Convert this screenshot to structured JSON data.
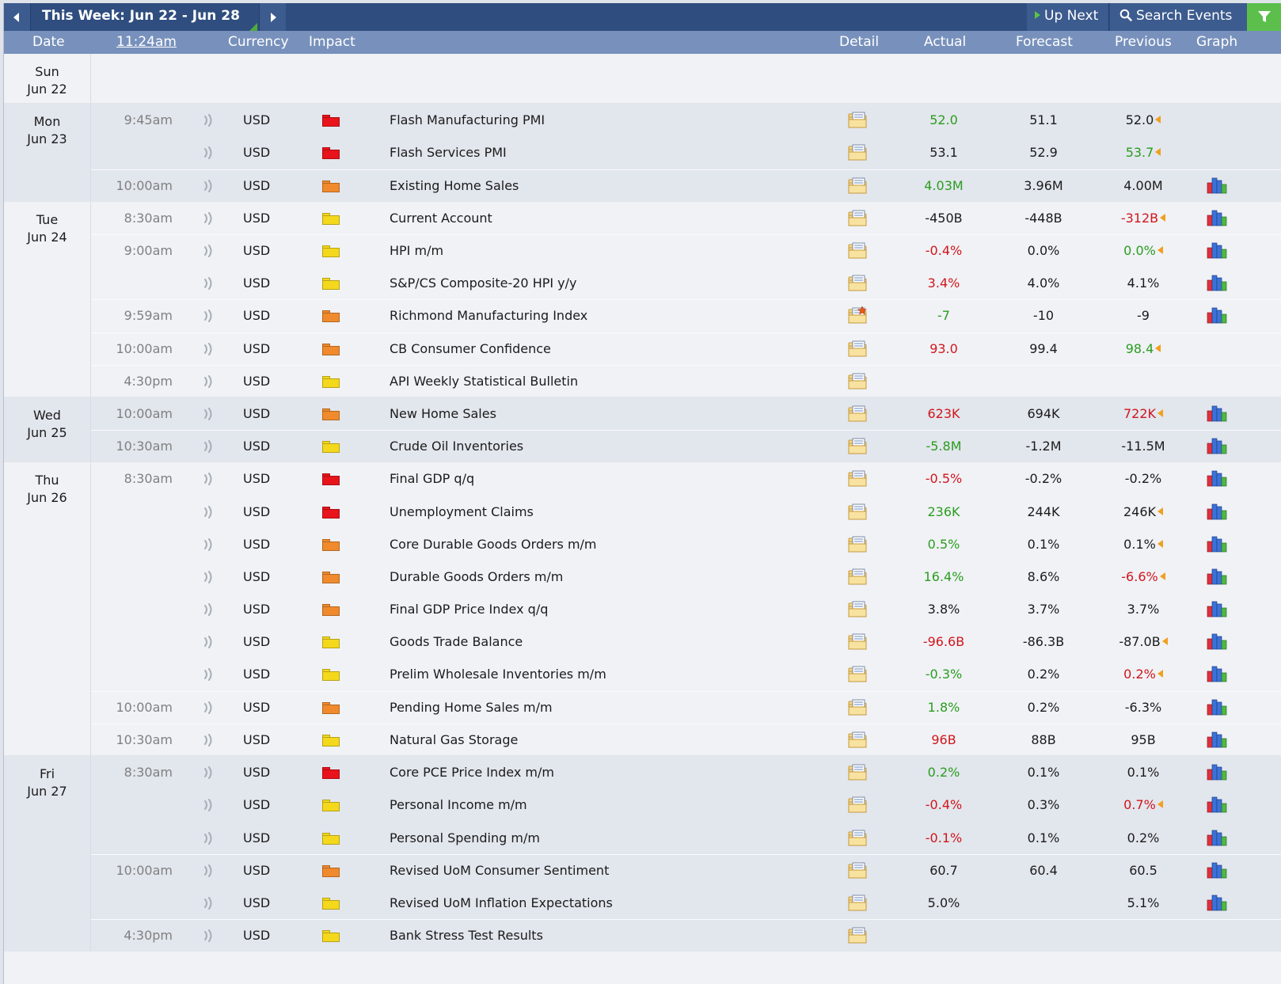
{
  "topbar": {
    "week_title": "This Week: Jun 22 - Jun 28",
    "up_next": "Up Next",
    "search_events": "Search Events",
    "accent_color": "#5cbf4c"
  },
  "columns": {
    "date": "Date",
    "time": "11:24am",
    "currency": "Currency",
    "impact": "Impact",
    "detail": "Detail",
    "actual": "Actual",
    "forecast": "Forecast",
    "previous": "Previous",
    "graph": "Graph"
  },
  "impact_colors": {
    "high": "#e8131b",
    "medium": "#f08a2c",
    "low": "#f4d81c"
  },
  "days": [
    {
      "day": "Sun",
      "date": "Jun 22",
      "events": []
    },
    {
      "day": "Mon",
      "date": "Jun 23",
      "events": [
        {
          "time": "9:45am",
          "currency": "USD",
          "impact": "high",
          "event": "Flash Manufacturing PMI",
          "actual": "52.0",
          "actual_status": "good",
          "forecast": "51.1",
          "previous": "52.0",
          "previous_status": "neutral",
          "revised": true,
          "graph": false,
          "detail_star": false
        },
        {
          "time": "",
          "currency": "USD",
          "impact": "high",
          "event": "Flash Services PMI",
          "actual": "53.1",
          "actual_status": "neutral",
          "forecast": "52.9",
          "previous": "53.7",
          "previous_status": "good",
          "revised": true,
          "graph": false,
          "detail_star": false
        },
        {
          "time": "10:00am",
          "currency": "USD",
          "impact": "medium",
          "event": "Existing Home Sales",
          "actual": "4.03M",
          "actual_status": "good",
          "forecast": "3.96M",
          "previous": "4.00M",
          "previous_status": "neutral",
          "revised": false,
          "graph": true,
          "detail_star": false
        }
      ]
    },
    {
      "day": "Tue",
      "date": "Jun 24",
      "events": [
        {
          "time": "8:30am",
          "currency": "USD",
          "impact": "low",
          "event": "Current Account",
          "actual": "-450B",
          "actual_status": "neutral",
          "forecast": "-448B",
          "previous": "-312B",
          "previous_status": "bad",
          "revised": true,
          "graph": true,
          "detail_star": false
        },
        {
          "time": "9:00am",
          "currency": "USD",
          "impact": "low",
          "event": "HPI m/m",
          "actual": "-0.4%",
          "actual_status": "bad",
          "forecast": "0.0%",
          "previous": "0.0%",
          "previous_status": "good",
          "revised": true,
          "graph": true,
          "detail_star": false
        },
        {
          "time": "",
          "currency": "USD",
          "impact": "low",
          "event": "S&P/CS Composite-20 HPI y/y",
          "actual": "3.4%",
          "actual_status": "bad",
          "forecast": "4.0%",
          "previous": "4.1%",
          "previous_status": "neutral",
          "revised": false,
          "graph": true,
          "detail_star": false
        },
        {
          "time": "9:59am",
          "currency": "USD",
          "impact": "medium",
          "event": "Richmond Manufacturing Index",
          "actual": "-7",
          "actual_status": "good",
          "forecast": "-10",
          "previous": "-9",
          "previous_status": "neutral",
          "revised": false,
          "graph": true,
          "detail_star": true
        },
        {
          "time": "10:00am",
          "currency": "USD",
          "impact": "medium",
          "event": "CB Consumer Confidence",
          "actual": "93.0",
          "actual_status": "bad",
          "forecast": "99.4",
          "previous": "98.4",
          "previous_status": "good",
          "revised": true,
          "graph": false,
          "detail_star": false
        },
        {
          "time": "4:30pm",
          "currency": "USD",
          "impact": "low",
          "event": "API Weekly Statistical Bulletin",
          "actual": "",
          "actual_status": "neutral",
          "forecast": "",
          "previous": "",
          "previous_status": "neutral",
          "revised": false,
          "graph": false,
          "detail_star": false
        }
      ]
    },
    {
      "day": "Wed",
      "date": "Jun 25",
      "events": [
        {
          "time": "10:00am",
          "currency": "USD",
          "impact": "medium",
          "event": "New Home Sales",
          "actual": "623K",
          "actual_status": "bad",
          "forecast": "694K",
          "previous": "722K",
          "previous_status": "bad",
          "revised": true,
          "graph": true,
          "detail_star": false
        },
        {
          "time": "10:30am",
          "currency": "USD",
          "impact": "low",
          "event": "Crude Oil Inventories",
          "actual": "-5.8M",
          "actual_status": "good",
          "forecast": "-1.2M",
          "previous": "-11.5M",
          "previous_status": "neutral",
          "revised": false,
          "graph": true,
          "detail_star": false
        }
      ]
    },
    {
      "day": "Thu",
      "date": "Jun 26",
      "events": [
        {
          "time": "8:30am",
          "currency": "USD",
          "impact": "high",
          "event": "Final GDP q/q",
          "actual": "-0.5%",
          "actual_status": "bad",
          "forecast": "-0.2%",
          "previous": "-0.2%",
          "previous_status": "neutral",
          "revised": false,
          "graph": true,
          "detail_star": false
        },
        {
          "time": "",
          "currency": "USD",
          "impact": "high",
          "event": "Unemployment Claims",
          "actual": "236K",
          "actual_status": "good",
          "forecast": "244K",
          "previous": "246K",
          "previous_status": "neutral",
          "revised": true,
          "graph": true,
          "detail_star": false
        },
        {
          "time": "",
          "currency": "USD",
          "impact": "medium",
          "event": "Core Durable Goods Orders m/m",
          "actual": "0.5%",
          "actual_status": "good",
          "forecast": "0.1%",
          "previous": "0.1%",
          "previous_status": "neutral",
          "revised": true,
          "graph": true,
          "detail_star": false
        },
        {
          "time": "",
          "currency": "USD",
          "impact": "medium",
          "event": "Durable Goods Orders m/m",
          "actual": "16.4%",
          "actual_status": "good",
          "forecast": "8.6%",
          "previous": "-6.6%",
          "previous_status": "bad",
          "revised": true,
          "graph": true,
          "detail_star": false
        },
        {
          "time": "",
          "currency": "USD",
          "impact": "medium",
          "event": "Final GDP Price Index q/q",
          "actual": "3.8%",
          "actual_status": "neutral",
          "forecast": "3.7%",
          "previous": "3.7%",
          "previous_status": "neutral",
          "revised": false,
          "graph": true,
          "detail_star": false
        },
        {
          "time": "",
          "currency": "USD",
          "impact": "low",
          "event": "Goods Trade Balance",
          "actual": "-96.6B",
          "actual_status": "bad",
          "forecast": "-86.3B",
          "previous": "-87.0B",
          "previous_status": "neutral",
          "revised": true,
          "graph": true,
          "detail_star": false
        },
        {
          "time": "",
          "currency": "USD",
          "impact": "low",
          "event": "Prelim Wholesale Inventories m/m",
          "actual": "-0.3%",
          "actual_status": "good",
          "forecast": "0.2%",
          "previous": "0.2%",
          "previous_status": "bad",
          "revised": true,
          "graph": true,
          "detail_star": false
        },
        {
          "time": "10:00am",
          "currency": "USD",
          "impact": "medium",
          "event": "Pending Home Sales m/m",
          "actual": "1.8%",
          "actual_status": "good",
          "forecast": "0.2%",
          "previous": "-6.3%",
          "previous_status": "neutral",
          "revised": false,
          "graph": true,
          "detail_star": false
        },
        {
          "time": "10:30am",
          "currency": "USD",
          "impact": "low",
          "event": "Natural Gas Storage",
          "actual": "96B",
          "actual_status": "bad",
          "forecast": "88B",
          "previous": "95B",
          "previous_status": "neutral",
          "revised": false,
          "graph": true,
          "detail_star": false
        }
      ]
    },
    {
      "day": "Fri",
      "date": "Jun 27",
      "events": [
        {
          "time": "8:30am",
          "currency": "USD",
          "impact": "high",
          "event": "Core PCE Price Index m/m",
          "actual": "0.2%",
          "actual_status": "good",
          "forecast": "0.1%",
          "previous": "0.1%",
          "previous_status": "neutral",
          "revised": false,
          "graph": true,
          "detail_star": false
        },
        {
          "time": "",
          "currency": "USD",
          "impact": "low",
          "event": "Personal Income m/m",
          "actual": "-0.4%",
          "actual_status": "bad",
          "forecast": "0.3%",
          "previous": "0.7%",
          "previous_status": "bad",
          "revised": true,
          "graph": true,
          "detail_star": false
        },
        {
          "time": "",
          "currency": "USD",
          "impact": "low",
          "event": "Personal Spending m/m",
          "actual": "-0.1%",
          "actual_status": "bad",
          "forecast": "0.1%",
          "previous": "0.2%",
          "previous_status": "neutral",
          "revised": false,
          "graph": true,
          "detail_star": false
        },
        {
          "time": "10:00am",
          "currency": "USD",
          "impact": "medium",
          "event": "Revised UoM Consumer Sentiment",
          "actual": "60.7",
          "actual_status": "neutral",
          "forecast": "60.4",
          "previous": "60.5",
          "previous_status": "neutral",
          "revised": false,
          "graph": true,
          "detail_star": false
        },
        {
          "time": "",
          "currency": "USD",
          "impact": "low",
          "event": "Revised UoM Inflation Expectations",
          "actual": "5.0%",
          "actual_status": "neutral",
          "forecast": "",
          "previous": "5.1%",
          "previous_status": "neutral",
          "revised": false,
          "graph": true,
          "detail_star": false
        },
        {
          "time": "4:30pm",
          "currency": "USD",
          "impact": "low",
          "event": "Bank Stress Test Results",
          "actual": "",
          "actual_status": "neutral",
          "forecast": "",
          "previous": "",
          "previous_status": "neutral",
          "revised": false,
          "graph": false,
          "detail_star": false
        }
      ]
    }
  ]
}
